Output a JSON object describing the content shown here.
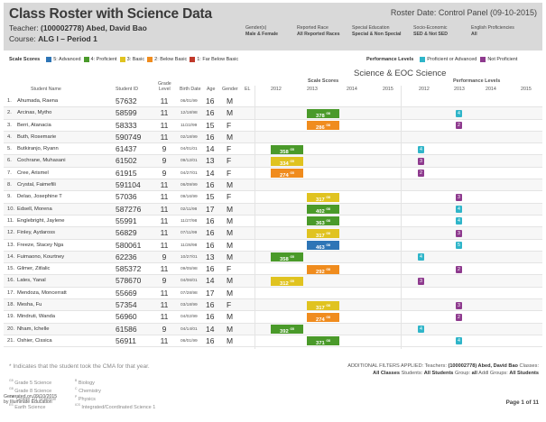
{
  "header": {
    "title": "Class Roster with Science Data",
    "roster_date": "Roster Date: Control Panel (09-10-2015)",
    "teacher_label": "Teacher:",
    "teacher_value": "(100002778) Abed, David Bao",
    "course_label": "Course:",
    "course_value": "ALG I – Period 1",
    "filters": [
      {
        "label": "Gender(s)",
        "value": "Male & Female"
      },
      {
        "label": "Reported Race",
        "value": "All Reported Races"
      },
      {
        "label": "Special Education",
        "value": "Special & Non Special"
      },
      {
        "label": "Socio-Economic",
        "value": "SED & Not SED"
      },
      {
        "label": "English Proficiencies",
        "value": "All"
      }
    ]
  },
  "legend": {
    "title": "Scale Scores",
    "items": [
      {
        "label": "5: Advanced",
        "color": "#2e75b6"
      },
      {
        "label": "4: Proficient",
        "color": "#4a9a2a"
      },
      {
        "label": "3: Basic",
        "color": "#e0c320"
      },
      {
        "label": "2: Below Basic",
        "color": "#f08c1e"
      },
      {
        "label": "1: Far Below Basic",
        "color": "#c0392b"
      }
    ]
  },
  "perf_legend": {
    "title": "Performance Levels",
    "items": [
      {
        "label": "Proficient or Advanced",
        "color": "#2fb5c9"
      },
      {
        "label": "Not Proficient",
        "color": "#8e3a8e"
      }
    ]
  },
  "section_title": "Science & EOC Science",
  "scale_scores_label": "Scale Scores",
  "performance_levels_label": "Performance Levels",
  "columns": {
    "student_name": "Student Name",
    "student_id": "Student ID",
    "grade_level_1": "Grade",
    "grade_level_2": "Level",
    "birth_date": "Birth Date",
    "age": "Age",
    "gender": "Gender",
    "el": "EL",
    "years": [
      "2012",
      "2013",
      "2014",
      "2015"
    ]
  },
  "students": [
    {
      "num": "1.",
      "name": "Ahumada, Raena",
      "id": "57632",
      "grade": "11",
      "bd": "06/01/99",
      "age": "16",
      "gender": "M"
    },
    {
      "num": "2.",
      "name": "Arcinas, Mytho",
      "id": "58599",
      "grade": "11",
      "bd": "12/18/98",
      "age": "16",
      "gender": "M",
      "s2013": "378",
      "s2013_sup": "G8",
      "s2013_lvl": 4,
      "p2013": "4",
      "p2013_c": "pro"
    },
    {
      "num": "3.",
      "name": "Berri, Atanacia",
      "id": "58333",
      "grade": "11",
      "bd": "11/22/99",
      "age": "15",
      "gender": "F",
      "s2013": "286",
      "s2013_sup": "G8",
      "s2013_lvl": 2,
      "p2013": "2",
      "p2013_c": "not"
    },
    {
      "num": "4.",
      "name": "Buth, Rosemarie",
      "id": "590749",
      "grade": "11",
      "bd": "02/18/99",
      "age": "16",
      "gender": "M"
    },
    {
      "num": "5.",
      "name": "Butkiranjo, Ryann",
      "id": "61437",
      "grade": "9",
      "bd": "04/01/01",
      "age": "14",
      "gender": "F",
      "s2012": "358",
      "s2012_sup": "G5",
      "s2012_lvl": 4,
      "p2012": "4",
      "p2012_c": "pro"
    },
    {
      "num": "6.",
      "name": "Cochrane, Muhasani",
      "id": "61502",
      "grade": "9",
      "bd": "09/12/01",
      "age": "13",
      "gender": "F",
      "s2012": "334",
      "s2012_sup": "G5",
      "s2012_lvl": 3,
      "p2012": "3",
      "p2012_c": "not"
    },
    {
      "num": "7.",
      "name": "Cree, Arismel",
      "id": "61915",
      "grade": "9",
      "bd": "04/27/01",
      "age": "14",
      "gender": "F",
      "s2012": "274",
      "s2012_sup": "G5",
      "s2012_lvl": 2,
      "p2012": "2",
      "p2012_c": "not"
    },
    {
      "num": "8.",
      "name": "Crystal, Faimefili",
      "id": "591104",
      "grade": "11",
      "bd": "06/09/99",
      "age": "16",
      "gender": "M"
    },
    {
      "num": "9.",
      "name": "Delao, Josephine T",
      "id": "57036",
      "grade": "11",
      "bd": "09/16/99",
      "age": "15",
      "gender": "F",
      "s2013": "317",
      "s2013_sup": "G8",
      "s2013_lvl": 3,
      "p2013": "3",
      "p2013_c": "not"
    },
    {
      "num": "10.",
      "name": "Edsell, Morena",
      "id": "587276",
      "grade": "11",
      "bd": "02/11/98",
      "age": "17",
      "gender": "M",
      "s2013": "402",
      "s2013_sup": "G8",
      "s2013_lvl": 4,
      "p2013": "4",
      "p2013_c": "pro"
    },
    {
      "num": "11.",
      "name": "Englebright, Jaylene",
      "id": "55991",
      "grade": "11",
      "bd": "11/27/98",
      "age": "16",
      "gender": "M",
      "s2013": "363",
      "s2013_sup": "G8",
      "s2013_lvl": 4,
      "p2013": "4",
      "p2013_c": "pro"
    },
    {
      "num": "12.",
      "name": "Finley, Aydaross",
      "id": "56829",
      "grade": "11",
      "bd": "07/11/99",
      "age": "16",
      "gender": "M",
      "s2013": "317",
      "s2013_sup": "G8",
      "s2013_lvl": 3,
      "p2013": "3",
      "p2013_c": "not"
    },
    {
      "num": "13.",
      "name": "Freeze, Stacey Nga",
      "id": "580061",
      "grade": "11",
      "bd": "11/28/98",
      "age": "16",
      "gender": "M",
      "s2013": "463",
      "s2013_sup": "G8",
      "s2013_lvl": 5,
      "p2013": "5",
      "p2013_c": "pro"
    },
    {
      "num": "14.",
      "name": "Fuimaono, Kourtney",
      "id": "62236",
      "grade": "9",
      "bd": "10/27/01",
      "age": "13",
      "gender": "M",
      "s2012": "358",
      "s2012_sup": "G5",
      "s2012_lvl": 4,
      "p2012": "4",
      "p2012_c": "pro"
    },
    {
      "num": "15.",
      "name": "Gilmer, Zitlalic",
      "id": "585372",
      "grade": "11",
      "bd": "09/05/98",
      "age": "16",
      "gender": "F",
      "s2013": "292",
      "s2013_sup": "G8",
      "s2013_lvl": 2,
      "p2013": "2",
      "p2013_c": "not"
    },
    {
      "num": "16.",
      "name": "Lates, Yanal",
      "id": "578670",
      "grade": "9",
      "bd": "04/06/01",
      "age": "14",
      "gender": "M",
      "s2012": "312",
      "s2012_sup": "G5",
      "s2012_lvl": 3,
      "p2012": "3",
      "p2012_c": "not"
    },
    {
      "num": "17.",
      "name": "Mendoza, Moncerratt",
      "id": "55669",
      "grade": "11",
      "bd": "07/28/98",
      "age": "17",
      "gender": "M"
    },
    {
      "num": "18.",
      "name": "Mesha, Fu",
      "id": "57354",
      "grade": "11",
      "bd": "03/18/99",
      "age": "16",
      "gender": "F",
      "s2013": "317",
      "s2013_sup": "G8",
      "s2013_lvl": 3,
      "p2013": "3",
      "p2013_c": "not"
    },
    {
      "num": "19.",
      "name": "Mindruti, Wanda",
      "id": "56960",
      "grade": "11",
      "bd": "04/02/99",
      "age": "16",
      "gender": "M",
      "s2013": "274",
      "s2013_sup": "G8",
      "s2013_lvl": 2,
      "p2013": "2",
      "p2013_c": "not"
    },
    {
      "num": "20.",
      "name": "Nham, Ichelle",
      "id": "61586",
      "grade": "9",
      "bd": "04/14/01",
      "age": "14",
      "gender": "M",
      "s2012": "392",
      "s2012_sup": "G5",
      "s2012_lvl": 4,
      "p2012": "4",
      "p2012_c": "pro"
    },
    {
      "num": "21.",
      "name": "Oshier, Cissica",
      "id": "56911",
      "grade": "11",
      "bd": "06/01/99",
      "age": "16",
      "gender": "M",
      "s2013": "371",
      "s2013_sup": "G8",
      "s2013_lvl": 4,
      "p2013": "4",
      "p2013_c": "pro"
    }
  ],
  "footnote": "* Indicates that the student took the CMA for that year.",
  "subjects_left": [
    {
      "code": "G5",
      "label": "Grade 5 Science"
    },
    {
      "code": "G8",
      "label": "Grade 8 Science"
    },
    {
      "code": "G10",
      "label": "Grade 10 Science"
    },
    {
      "code": "ES",
      "label": "Earth Science"
    }
  ],
  "subjects_right": [
    {
      "code": "B",
      "label": "Biology"
    },
    {
      "code": "C",
      "label": "Chemistry"
    },
    {
      "code": "P",
      "label": "Physics"
    },
    {
      "code": "ICS",
      "label": "Integrated/Coordinated Science 1"
    }
  ],
  "additional_filters": {
    "prefix": "ADDITIONAL FILTERS APPLIED: Teachers:",
    "teachers": "(100002778) Abed, David Bao",
    "classes_label": "Classes:",
    "classes": "All Classes",
    "students_label": "Students:",
    "students": "All Students",
    "group_label": "Group:",
    "group": "all",
    "addl_groups_label": "Addl Groups:",
    "addl_groups": "All Students"
  },
  "generated_line1": "Generated on 09/10/2015",
  "generated_line2": "by Illuminate Education",
  "page": "Page 1 of 11",
  "colors": {
    "lvl5": "#2e75b6",
    "lvl4": "#4a9a2a",
    "lvl3": "#e0c320",
    "lvl2": "#f08c1e",
    "lvl1": "#c0392b",
    "pro": "#2fb5c9",
    "not": "#8e3a8e"
  }
}
